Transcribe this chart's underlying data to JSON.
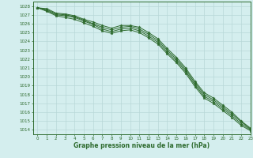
{
  "hours": [
    0,
    1,
    2,
    3,
    4,
    5,
    6,
    7,
    8,
    9,
    10,
    11,
    12,
    13,
    14,
    15,
    16,
    17,
    18,
    19,
    20,
    21,
    22,
    23
  ],
  "series": [
    [
      1027.8,
      1027.7,
      1027.2,
      1027.1,
      1026.9,
      1026.5,
      1026.2,
      1025.8,
      1025.5,
      1025.8,
      1025.8,
      1025.6,
      1025.0,
      1024.3,
      1023.2,
      1022.2,
      1021.0,
      1019.5,
      1018.2,
      1017.6,
      1016.8,
      1016.0,
      1015.0,
      1014.2
    ],
    [
      1027.8,
      1027.6,
      1027.1,
      1027.0,
      1026.8,
      1026.4,
      1026.0,
      1025.6,
      1025.3,
      1025.6,
      1025.7,
      1025.4,
      1024.8,
      1024.1,
      1023.0,
      1022.0,
      1020.8,
      1019.3,
      1018.0,
      1017.4,
      1016.6,
      1015.8,
      1014.9,
      1014.1
    ],
    [
      1027.8,
      1027.5,
      1027.0,
      1026.9,
      1026.7,
      1026.3,
      1025.9,
      1025.4,
      1025.1,
      1025.4,
      1025.5,
      1025.2,
      1024.6,
      1023.9,
      1022.8,
      1021.8,
      1020.6,
      1019.1,
      1017.8,
      1017.2,
      1016.4,
      1015.6,
      1014.7,
      1014.0
    ],
    [
      1027.8,
      1027.4,
      1026.9,
      1026.7,
      1026.5,
      1026.1,
      1025.7,
      1025.2,
      1024.9,
      1025.2,
      1025.3,
      1025.0,
      1024.4,
      1023.7,
      1022.6,
      1021.6,
      1020.4,
      1018.9,
      1017.6,
      1017.0,
      1016.2,
      1015.4,
      1014.5,
      1013.9
    ]
  ],
  "line_color": "#2d6a2d",
  "marker_color": "#2d6a2d",
  "bg_color": "#d4eeee",
  "grid_major_color": "#b8d8d8",
  "grid_minor_color": "#c8e8e8",
  "axis_color": "#2d6a2d",
  "xlabel": "Graphe pression niveau de la mer (hPa)",
  "ylim": [
    1013.5,
    1028.5
  ],
  "xlim": [
    -0.5,
    23
  ],
  "yticks": [
    1014,
    1015,
    1016,
    1017,
    1018,
    1019,
    1020,
    1021,
    1022,
    1023,
    1024,
    1025,
    1026,
    1027,
    1028
  ],
  "xticks": [
    0,
    1,
    2,
    3,
    4,
    5,
    6,
    7,
    8,
    9,
    10,
    11,
    12,
    13,
    14,
    15,
    16,
    17,
    18,
    19,
    20,
    21,
    22,
    23
  ],
  "linewidth": 0.7,
  "markersize": 2.5
}
